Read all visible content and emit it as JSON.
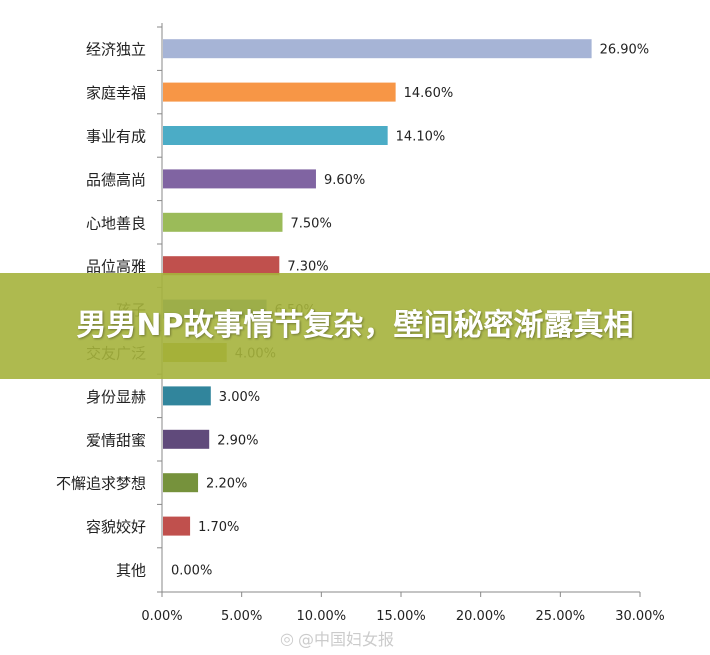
{
  "chart_data": {
    "type": "bar",
    "orientation": "horizontal",
    "categories": [
      "经济独立",
      "家庭幸福",
      "事业有成",
      "品德高尚",
      "心地善良",
      "品位高雅",
      "孩子",
      "交友广泛",
      "身份显赫",
      "爱情甜蜜",
      "不懈追求梦想",
      "容貌姣好",
      "其他"
    ],
    "values": [
      26.9,
      14.6,
      14.1,
      9.6,
      7.5,
      7.3,
      6.5,
      4.0,
      3.0,
      2.9,
      2.2,
      1.7,
      0.0
    ],
    "value_labels": [
      "26.90%",
      "14.60%",
      "14.10%",
      "9.60%",
      "7.50%",
      "7.30%",
      "6.50%",
      "4.00%",
      "3.00%",
      "2.90%",
      "2.20%",
      "1.70%",
      "0.00%"
    ],
    "colors": [
      "#a6b4d6",
      "#f79646",
      "#4bacc6",
      "#8064a2",
      "#9bbb59",
      "#c0504d",
      "#4f81bd",
      "#a6a61f",
      "#31859c",
      "#604a7b",
      "#76923c",
      "#c0504d",
      "#4f81bd"
    ],
    "xlim": [
      0,
      30
    ],
    "xticks": [
      "0.00%",
      "5.00%",
      "10.00%",
      "15.00%",
      "20.00%",
      "25.00%",
      "30.00%"
    ],
    "xtick_values": [
      0,
      5,
      10,
      15,
      20,
      25,
      30
    ],
    "title": "",
    "xlabel": "",
    "ylabel": ""
  },
  "overlay": {
    "title": "男男NP故事情节复杂，壁间秘密渐露真相"
  },
  "watermark": {
    "icon": "weibo-icon",
    "text": "@中国妇女报"
  }
}
